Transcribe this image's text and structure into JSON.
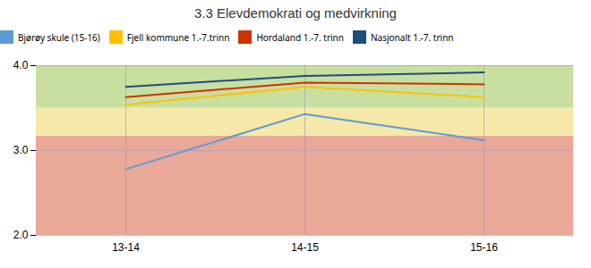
{
  "chart_data": {
    "type": "line",
    "title": "3.3 Elevdemokrati og medvirkning",
    "categories": [
      "13-14",
      "14-15",
      "15-16"
    ],
    "series": [
      {
        "name": "Bjørøy skule (15-16)",
        "color": "#5B9BD5",
        "values": [
          2.78,
          3.43,
          3.12
        ]
      },
      {
        "name": "Fjell kommune 1.-7.trinn",
        "color": "#FFC000",
        "values": [
          3.54,
          3.75,
          3.63
        ]
      },
      {
        "name": "Hordaland 1.-7. trinn",
        "color": "#CC3300",
        "values": [
          3.63,
          3.8,
          3.78
        ]
      },
      {
        "name": "Nasjonalt 1.-7. trinn",
        "color": "#1F4E79",
        "values": [
          3.75,
          3.88,
          3.92
        ]
      }
    ],
    "ylim": [
      2,
      4
    ],
    "yticks": [
      2,
      3,
      4
    ],
    "bands": [
      {
        "ymin": 2.0,
        "ymax": 3.17,
        "color": "#EAA898"
      },
      {
        "ymin": 3.17,
        "ymax": 3.5,
        "color": "#F5E8A8"
      },
      {
        "ymin": 3.5,
        "ymax": 4.0,
        "color": "#C8DFA0"
      }
    ],
    "grid": true,
    "legend": "top"
  }
}
